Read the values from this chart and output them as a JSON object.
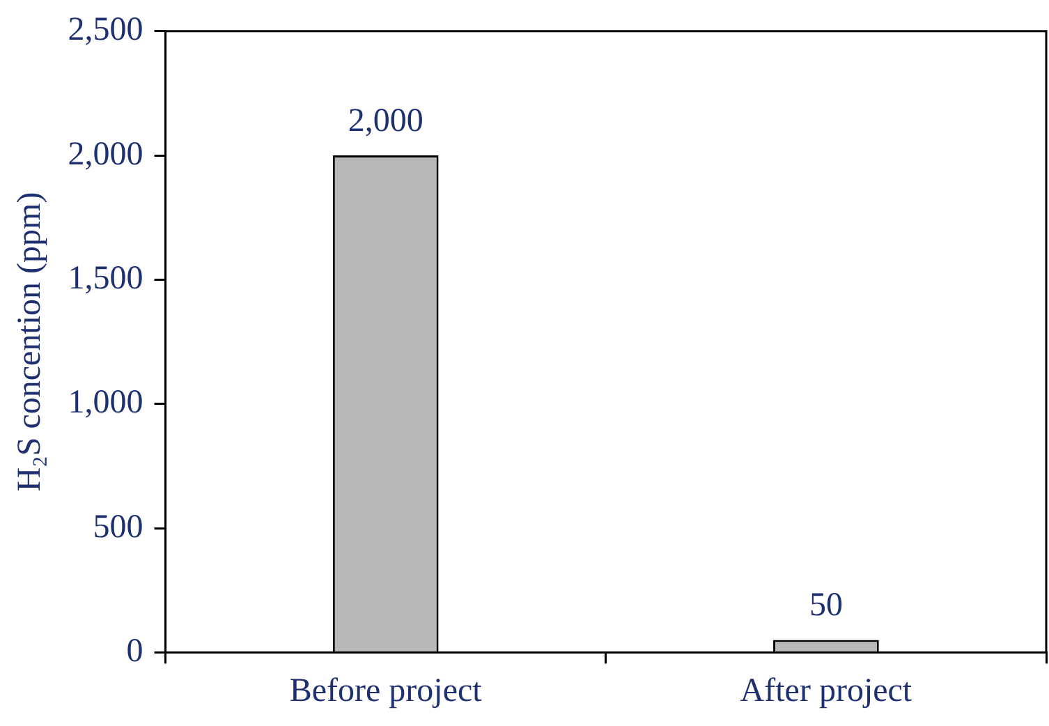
{
  "chart_data": {
    "type": "bar",
    "ylabel": "H₂S concention (ppm)",
    "categories": [
      "Before project",
      "After project"
    ],
    "values": [
      2000,
      50
    ],
    "color": "#b8b8b8",
    "ylim": [
      0,
      2500
    ],
    "yticks": [
      {
        "value": 0,
        "label": "0"
      },
      {
        "value": 500,
        "label": "500"
      },
      {
        "value": 1000,
        "label": "1,000"
      },
      {
        "value": 1500,
        "label": "1,500"
      },
      {
        "value": 2000,
        "label": "2,000"
      },
      {
        "value": 2500,
        "label": "2,500"
      }
    ],
    "grid": false,
    "legend": false,
    "value_labels": [
      "2,000",
      "50"
    ]
  }
}
